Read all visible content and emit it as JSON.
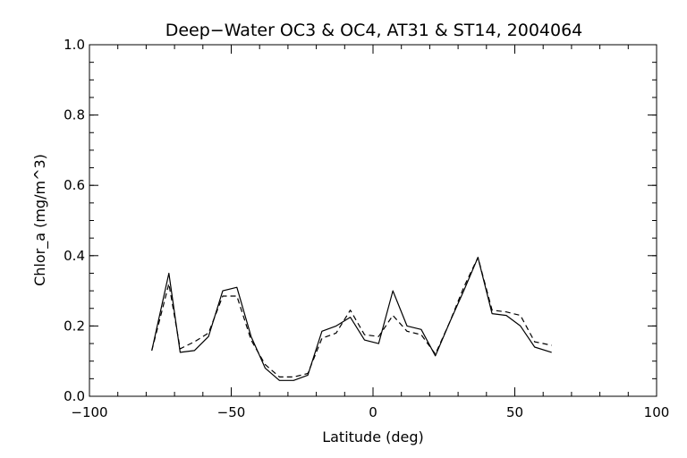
{
  "chart_data": {
    "type": "line",
    "title": "Deep−Water OC3 & OC4, AT31 & ST14, 2004064",
    "xlabel": "Latitude (deg)",
    "ylabel": "Chlor_a (mg/m^3)",
    "xlim": [
      -100,
      100
    ],
    "ylim": [
      0.0,
      1.0
    ],
    "xticks": [
      -100,
      -50,
      0,
      50,
      100
    ],
    "xtick_labels": [
      "−100",
      "−50",
      "0",
      "50",
      "100"
    ],
    "yticks": [
      0.0,
      0.2,
      0.4,
      0.6,
      0.8,
      1.0
    ],
    "ytick_labels": [
      "0.0",
      "0.2",
      "0.4",
      "0.6",
      "0.8",
      "1.0"
    ],
    "x_minor_step": 10,
    "y_minor_step": 0.05,
    "grid": false,
    "series": [
      {
        "style": "solid",
        "color": "#000000",
        "x": [
          -78,
          -72,
          -68,
          -63,
          -58,
          -53,
          -48,
          -43,
          -38,
          -33,
          -28,
          -23,
          -18,
          -13,
          -8,
          -3,
          2,
          7,
          12,
          17,
          22,
          27,
          32,
          37,
          42,
          47,
          52,
          57,
          63
        ],
        "y": [
          0.13,
          0.35,
          0.125,
          0.13,
          0.17,
          0.3,
          0.31,
          0.17,
          0.08,
          0.045,
          0.045,
          0.06,
          0.185,
          0.2,
          0.225,
          0.16,
          0.15,
          0.3,
          0.2,
          0.19,
          0.115,
          0.21,
          0.3,
          0.395,
          0.235,
          0.23,
          0.2,
          0.14,
          0.125
        ]
      },
      {
        "style": "dashed",
        "color": "#000000",
        "x": [
          -78,
          -72,
          -68,
          -63,
          -58,
          -53,
          -48,
          -43,
          -38,
          -33,
          -28,
          -23,
          -18,
          -13,
          -8,
          -3,
          2,
          7,
          12,
          17,
          22,
          27,
          32,
          37,
          42,
          47,
          52,
          57,
          63
        ],
        "y": [
          0.13,
          0.32,
          0.135,
          0.155,
          0.18,
          0.285,
          0.285,
          0.16,
          0.09,
          0.055,
          0.055,
          0.065,
          0.165,
          0.18,
          0.245,
          0.175,
          0.17,
          0.23,
          0.185,
          0.175,
          0.12,
          0.21,
          0.31,
          0.395,
          0.245,
          0.24,
          0.23,
          0.155,
          0.145
        ]
      }
    ]
  }
}
